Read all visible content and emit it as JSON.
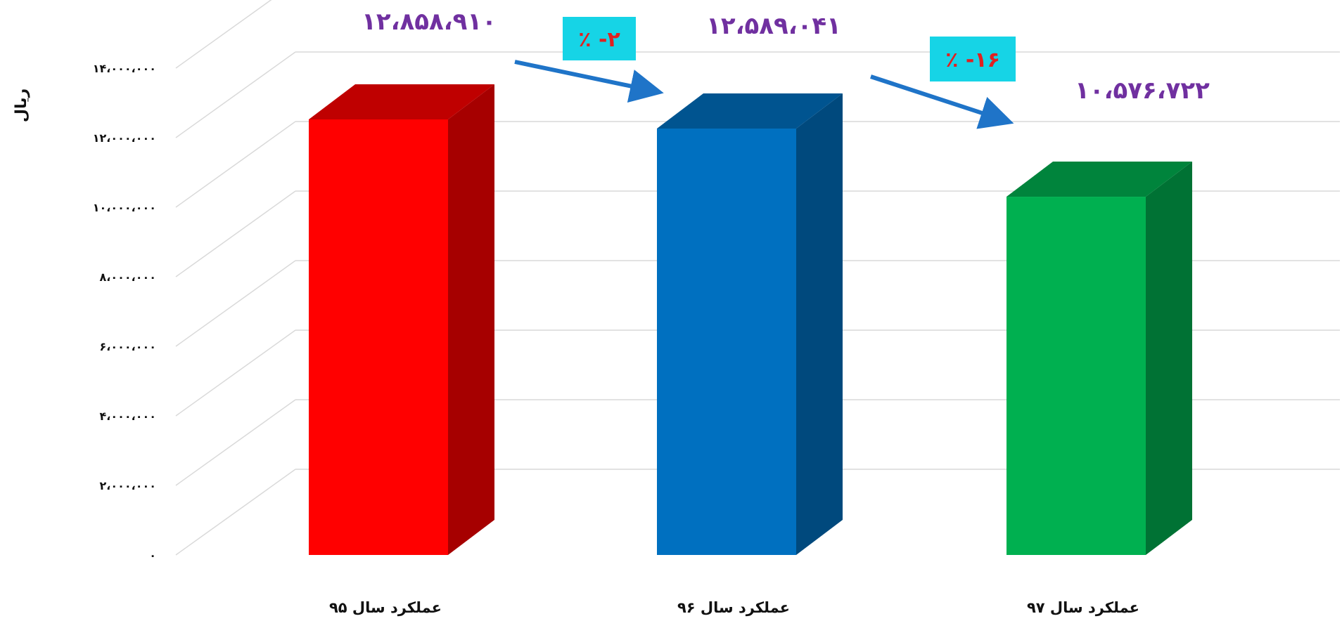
{
  "chart_data": {
    "type": "bar",
    "title": "",
    "xlabel": "",
    "ylabel": "ریال",
    "categories": [
      "عملکرد سال ۹۵",
      "عملکرد سال ۹۶",
      "عملکرد سال ۹۷"
    ],
    "series": [
      {
        "values": [
          12858910,
          12589041,
          10576722
        ],
        "value_labels": [
          "۱۲،۸۵۸،۹۱۰",
          "۱۲،۵۸۹،۰۴۱",
          "۱۰،۵۷۶،۷۲۲"
        ],
        "colors": [
          "#ff0000",
          "#0070c0",
          "#00b050"
        ]
      }
    ],
    "ylim": [
      0,
      16000000
    ],
    "yticks": [
      0,
      2000000,
      4000000,
      6000000,
      8000000,
      10000000,
      12000000,
      14000000
    ],
    "ytick_labels": [
      "۰",
      "۲،۰۰۰،۰۰۰",
      "۴،۰۰۰،۰۰۰",
      "۶،۰۰۰،۰۰۰",
      "۸،۰۰۰،۰۰۰",
      "۱۰،۰۰۰،۰۰۰",
      "۱۲،۰۰۰،۰۰۰",
      "۱۴،۰۰۰،۰۰۰"
    ],
    "grid": true,
    "style": "3d-column",
    "annotations": [
      {
        "from": 0,
        "to": 1,
        "label": "٪ -۲"
      },
      {
        "from": 1,
        "to": 2,
        "label": "٪ -۱۶"
      }
    ],
    "annotation_colors": {
      "box": "#16d4e6",
      "text": "#e02020",
      "arrow": "#1f74c8"
    },
    "colors": {
      "label": "#7030a0",
      "grid": "#d9d9d9"
    }
  }
}
